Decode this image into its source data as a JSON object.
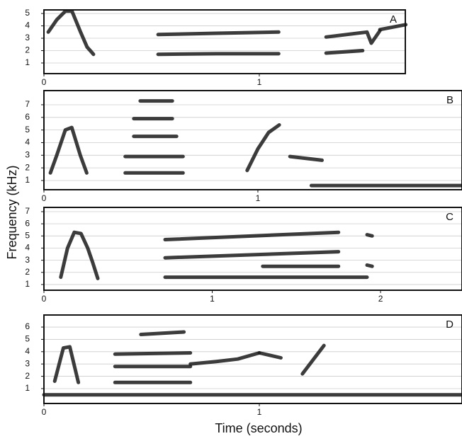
{
  "ylabel": "Frequency (kHz)",
  "xlabel": "Time (seconds)",
  "chart_data": [
    {
      "type": "spectrogram",
      "label": "A",
      "color": "#1a1a1a",
      "grid": true,
      "xlim": [
        0,
        1.678
      ],
      "ylim": [
        0.14,
        5.29
      ],
      "xticks": [
        0,
        1
      ],
      "yticks": [
        1,
        2,
        3,
        4,
        5
      ],
      "traces": [
        {
          "x": [
            0.02,
            0.06,
            0.1,
            0.13,
            0.17,
            0.2,
            0.23
          ],
          "values": [
            3.5,
            4.5,
            5.2,
            5.2,
            3.5,
            2.3,
            1.7
          ]
        },
        {
          "x": [
            0.53,
            0.8,
            1.09
          ],
          "values": [
            3.3,
            3.4,
            3.5
          ]
        },
        {
          "x": [
            0.53,
            0.8,
            1.09
          ],
          "values": [
            1.7,
            1.75,
            1.75
          ]
        },
        {
          "x": [
            1.31,
            1.48
          ],
          "values": [
            1.8,
            2.0
          ]
        },
        {
          "x": [
            1.31,
            1.5,
            1.52,
            1.56
          ],
          "values": [
            3.1,
            3.5,
            2.6,
            3.6
          ]
        },
        {
          "x": [
            1.56,
            1.68
          ],
          "values": [
            3.7,
            4.1
          ]
        }
      ]
    },
    {
      "type": "spectrogram",
      "label": "B",
      "color": "#1a1a1a",
      "grid": true,
      "xlim": [
        0,
        1.954
      ],
      "ylim": [
        0.27,
        8.12
      ],
      "xticks": [
        0,
        1
      ],
      "yticks": [
        1,
        2,
        3,
        4,
        5,
        6,
        7
      ],
      "traces": [
        {
          "x": [
            0.03,
            0.06,
            0.1,
            0.13,
            0.17,
            0.2
          ],
          "values": [
            1.6,
            3,
            5,
            5.2,
            3,
            1.6
          ]
        },
        {
          "x": [
            0.38,
            0.65
          ],
          "values": [
            1.6,
            1.6
          ]
        },
        {
          "x": [
            0.38,
            0.65
          ],
          "values": [
            2.9,
            2.9
          ]
        },
        {
          "x": [
            0.42,
            0.62
          ],
          "values": [
            4.5,
            4.5
          ]
        },
        {
          "x": [
            0.42,
            0.6
          ],
          "values": [
            5.9,
            5.9
          ]
        },
        {
          "x": [
            0.45,
            0.6
          ],
          "values": [
            7.3,
            7.3
          ]
        },
        {
          "x": [
            0.95,
            1.0,
            1.05,
            1.1
          ],
          "values": [
            1.8,
            3.5,
            4.8,
            5.4
          ]
        },
        {
          "x": [
            1.15,
            1.3
          ],
          "values": [
            2.9,
            2.6
          ]
        },
        {
          "x": [
            1.25,
            1.954
          ],
          "values": [
            0.6,
            0.6
          ]
        }
      ]
    },
    {
      "type": "spectrogram",
      "label": "C",
      "color": "#1a1a1a",
      "grid": true,
      "xlim": [
        0,
        2.484
      ],
      "ylim": [
        0.53,
        7.35
      ],
      "xticks": [
        0,
        1,
        2
      ],
      "yticks": [
        1,
        2,
        3,
        4,
        5,
        6,
        7
      ],
      "traces": [
        {
          "x": [
            0.1,
            0.14,
            0.18,
            0.22,
            0.26,
            0.29,
            0.32
          ],
          "values": [
            1.6,
            4,
            5.3,
            5.2,
            4,
            2.8,
            1.5
          ]
        },
        {
          "x": [
            0.72,
            1.92
          ],
          "values": [
            1.6,
            1.6
          ]
        },
        {
          "x": [
            0.72,
            1.75
          ],
          "values": [
            3.2,
            3.7
          ]
        },
        {
          "x": [
            0.72,
            1.75
          ],
          "values": [
            4.7,
            5.3
          ]
        },
        {
          "x": [
            1.3,
            1.75
          ],
          "values": [
            2.5,
            2.5
          ]
        },
        {
          "x": [
            1.92,
            1.95
          ],
          "values": [
            2.6,
            2.5
          ]
        },
        {
          "x": [
            1.92,
            1.95
          ],
          "values": [
            5.1,
            5.0
          ]
        }
      ]
    },
    {
      "type": "spectrogram",
      "label": "D",
      "color": "#1a1a1a",
      "grid": true,
      "xlim": [
        0,
        1.941
      ],
      "ylim": [
        -0.21,
        6.98
      ],
      "xticks": [
        0,
        1
      ],
      "yticks": [
        1,
        2,
        3,
        4,
        5,
        6
      ],
      "traces": [
        {
          "x": [
            0.05,
            0.09,
            0.12,
            0.16
          ],
          "values": [
            1.6,
            4.3,
            4.4,
            1.5
          ]
        },
        {
          "x": [
            0.33,
            0.68
          ],
          "values": [
            1.5,
            1.5
          ]
        },
        {
          "x": [
            0.33,
            0.68
          ],
          "values": [
            2.8,
            2.8
          ]
        },
        {
          "x": [
            0.33,
            0.68
          ],
          "values": [
            3.8,
            3.9
          ]
        },
        {
          "x": [
            0.45,
            0.65
          ],
          "values": [
            5.4,
            5.6
          ]
        },
        {
          "x": [
            0.68,
            0.8,
            0.9,
            1.0
          ],
          "values": [
            3.0,
            3.2,
            3.4,
            3.9
          ]
        },
        {
          "x": [
            1.0,
            1.1
          ],
          "values": [
            3.9,
            3.5
          ]
        },
        {
          "x": [
            1.2,
            1.3
          ],
          "values": [
            2.2,
            4.5
          ]
        },
        {
          "x": [
            0,
            1.941
          ],
          "values": [
            0.5,
            0.5
          ]
        }
      ]
    }
  ]
}
